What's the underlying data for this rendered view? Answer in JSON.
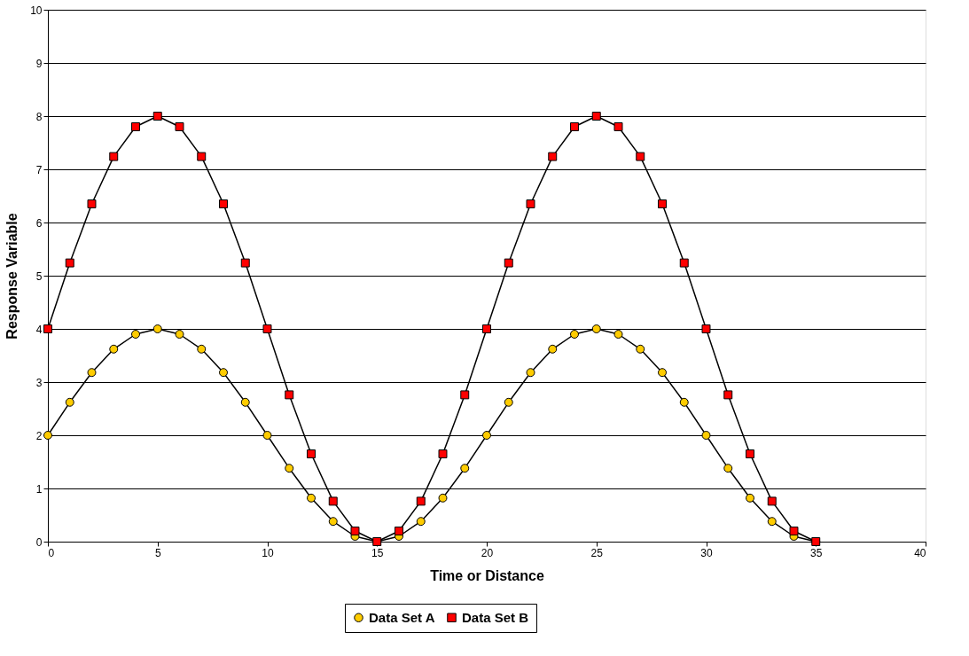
{
  "chart_data": {
    "type": "line",
    "xlabel": "Time or Distance",
    "ylabel": "Response Variable",
    "x": [
      0,
      1,
      2,
      3,
      4,
      5,
      6,
      7,
      8,
      9,
      10,
      11,
      12,
      13,
      14,
      15,
      16,
      17,
      18,
      19,
      20,
      21,
      22,
      23,
      24,
      25,
      26,
      27,
      28,
      29,
      30,
      31,
      32,
      33,
      34,
      35
    ],
    "series": [
      {
        "name": "Data Set A",
        "color": "#ffcc00",
        "marker": "circle",
        "values": [
          2,
          2.62,
          3.18,
          3.62,
          3.9,
          4,
          3.9,
          3.62,
          3.18,
          2.62,
          2,
          1.38,
          0.82,
          0.38,
          0.1,
          0,
          0.1,
          0.38,
          0.82,
          1.38,
          2,
          2.62,
          3.18,
          3.62,
          3.9,
          4,
          3.9,
          3.62,
          3.18,
          2.62,
          2,
          1.38,
          0.82,
          0.38,
          0.1,
          0
        ]
      },
      {
        "name": "Data Set B",
        "color": "#ff0000",
        "marker": "square",
        "values": [
          4,
          5.24,
          6.35,
          7.24,
          7.8,
          8,
          7.8,
          7.24,
          6.35,
          5.24,
          4,
          2.76,
          1.65,
          0.76,
          0.2,
          0,
          0.2,
          0.76,
          1.65,
          2.76,
          4,
          5.24,
          6.35,
          7.24,
          7.8,
          8,
          7.8,
          7.24,
          6.35,
          5.24,
          4,
          2.76,
          1.65,
          0.76,
          0.2,
          0
        ]
      }
    ],
    "xlim": [
      0,
      40
    ],
    "xticks": [
      0,
      5,
      10,
      15,
      20,
      25,
      30,
      35,
      40
    ],
    "ylim": [
      0,
      10
    ],
    "yticks": [
      0,
      1,
      2,
      3,
      4,
      5,
      6,
      7,
      8,
      9,
      10
    ],
    "grid": "y",
    "legend": "bottom",
    "line_style": "solid"
  }
}
